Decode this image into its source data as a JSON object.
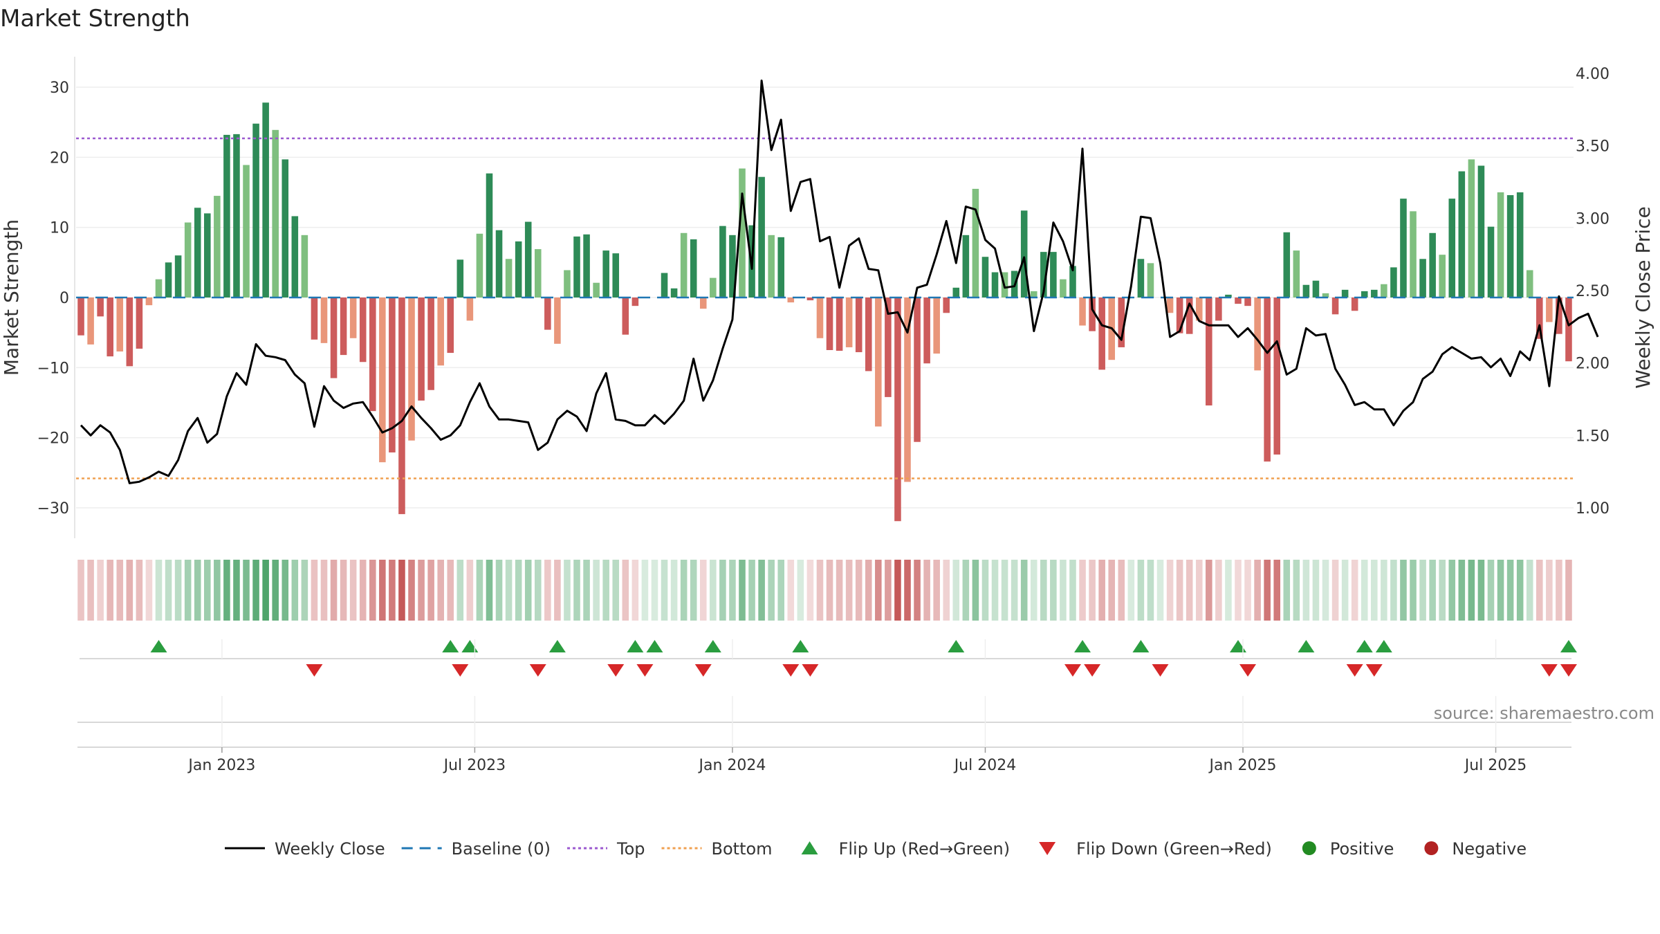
{
  "chart_data": {
    "type": "bar",
    "title": "Market Strength",
    "ylabel": "Market Strength",
    "y2label": "Weekly Close Price",
    "ylim": [
      -34,
      35
    ],
    "y2lim": [
      0.8,
      4.1
    ],
    "yticks": [
      30,
      20,
      10,
      0,
      -10,
      -20,
      -30
    ],
    "y2ticks": [
      "4.00",
      "3.50",
      "3.00",
      "2.50",
      "2.00",
      "1.50",
      "1.00"
    ],
    "xticks": [
      {
        "label": "Jan 2023",
        "week": 15
      },
      {
        "label": "Jul 2023",
        "week": 41
      },
      {
        "label": "Jan 2024",
        "week": 67.5
      },
      {
        "label": "Jul 2024",
        "week": 93.5
      },
      {
        "label": "Jan 2025",
        "week": 120
      },
      {
        "label": "Jul 2025",
        "week": 146
      }
    ],
    "top_line": 22.7,
    "bottom_line": -25.8,
    "strength": [
      -5.4,
      -6.7,
      -2.7,
      -8.4,
      -7.7,
      -9.8,
      -7.3,
      -1.1,
      2.6,
      5.0,
      6.0,
      10.7,
      12.8,
      12.0,
      14.5,
      23.2,
      23.3,
      18.9,
      24.8,
      27.8,
      23.9,
      19.7,
      11.6,
      8.9,
      -6.0,
      -6.5,
      -11.5,
      -8.2,
      -5.8,
      -9.2,
      -16.2,
      -23.5,
      -22.1,
      -30.9,
      -20.4,
      -14.7,
      -13.2,
      -9.7,
      -7.9,
      5.4,
      -3.3,
      9.1,
      17.7,
      9.6,
      5.5,
      8.0,
      10.8,
      6.9,
      -4.6,
      -6.6,
      3.9,
      8.7,
      9.0,
      2.1,
      6.7,
      6.3,
      -5.3,
      -1.2,
      0.0,
      0.0,
      3.5,
      1.3,
      9.2,
      8.3,
      -1.6,
      2.8,
      10.2,
      8.9,
      18.4,
      10.3,
      17.2,
      8.9,
      8.6,
      -0.7,
      0.0,
      -0.4,
      -5.8,
      -7.5,
      -7.6,
      -7.1,
      -7.8,
      -10.5,
      -18.4,
      -14.2,
      -31.9,
      -26.3,
      -20.6,
      -9.4,
      -8.0,
      -2.2,
      1.4,
      8.9,
      15.5,
      5.8,
      3.6,
      3.6,
      3.8,
      12.4,
      0.9,
      6.5,
      6.5,
      2.6,
      4.5,
      -4.0,
      -4.8,
      -10.3,
      -8.9,
      -7.1,
      0.0,
      5.5,
      4.9,
      0.0,
      -2.2,
      -5.1,
      -5.2,
      -3.3,
      -15.4,
      -3.3,
      0.4,
      -0.9,
      -1.2,
      -10.4,
      -23.4,
      -22.4,
      9.3,
      6.7,
      1.8,
      2.4,
      0.6,
      -2.4,
      1.1,
      -1.9,
      0.9,
      1.1,
      1.9,
      4.3,
      14.1,
      12.3,
      5.5,
      9.2,
      6.1,
      14.1,
      18.0,
      19.7,
      18.8,
      10.1,
      15.0,
      14.6,
      15.0,
      3.9,
      -5.9,
      -3.5,
      -5.2,
      -9.1
    ],
    "close": [
      1.57,
      1.5,
      1.57,
      1.52,
      1.4,
      1.17,
      1.18,
      1.21,
      1.25,
      1.22,
      1.33,
      1.53,
      1.62,
      1.45,
      1.51,
      1.77,
      1.93,
      1.85,
      2.13,
      2.05,
      2.04,
      2.02,
      1.92,
      1.86,
      1.56,
      1.84,
      1.74,
      1.69,
      1.72,
      1.73,
      1.63,
      1.52,
      1.55,
      1.6,
      1.7,
      1.62,
      1.55,
      1.47,
      1.5,
      1.57,
      1.73,
      1.86,
      1.7,
      1.61,
      1.61,
      1.6,
      1.59,
      1.4,
      1.45,
      1.61,
      1.67,
      1.63,
      1.53,
      1.79,
      1.93,
      1.61,
      1.6,
      1.57,
      1.57,
      1.64,
      1.58,
      1.65,
      1.74,
      2.03,
      1.74,
      1.88,
      2.1,
      2.3,
      3.17,
      2.65,
      3.95,
      3.47,
      3.68,
      3.05,
      3.25,
      3.27,
      2.84,
      2.87,
      2.52,
      2.81,
      2.86,
      2.65,
      2.64,
      2.34,
      2.35,
      2.21,
      2.52,
      2.54,
      2.75,
      2.98,
      2.69,
      3.08,
      3.06,
      2.85,
      2.79,
      2.52,
      2.53,
      2.73,
      2.22,
      2.49,
      2.97,
      2.84,
      2.64,
      3.48,
      2.37,
      2.26,
      2.24,
      2.16,
      2.53,
      3.01,
      3.0,
      2.69,
      2.18,
      2.22,
      2.41,
      2.29,
      2.26,
      2.26,
      2.26,
      2.18,
      2.24,
      2.16,
      2.07,
      2.15,
      1.92,
      1.96,
      2.24,
      2.19,
      2.2,
      1.96,
      1.85,
      1.71,
      1.73,
      1.68,
      1.68,
      1.57,
      1.67,
      1.73,
      1.89,
      1.94,
      2.06,
      2.11,
      2.07,
      2.03,
      2.04,
      1.97,
      2.03,
      1.91,
      2.08,
      2.02,
      2.26,
      1.84,
      2.46,
      2.26,
      2.31,
      2.34,
      2.18
    ],
    "flip_up_weeks": [
      8,
      38,
      40,
      49,
      57,
      59,
      65,
      74,
      90,
      103,
      109,
      119,
      126,
      132,
      134,
      153
    ],
    "flip_down_weeks": [
      24,
      39,
      47,
      55,
      58,
      64,
      73,
      75,
      102,
      104,
      111,
      120,
      131,
      133,
      151,
      153
    ],
    "colors": {
      "pos_strong": "#2e8b57",
      "pos_light": "#7fbf7f",
      "neg_strong": "#cd5c5c",
      "neg_light": "#e9967a",
      "price_line": "#000000",
      "baseline": "#1f77b4",
      "top": "#9b59d0",
      "bottom": "#f0a050",
      "flip_up": "#2a9d3f",
      "flip_down": "#d62728",
      "positive_dot": "#228b22",
      "negative_dot": "#b22222"
    },
    "legend": [
      {
        "label": "Weekly Close",
        "kind": "line-solid",
        "color": "#000000"
      },
      {
        "label": "Baseline (0)",
        "kind": "line-dash",
        "color": "#1f77b4"
      },
      {
        "label": "Top",
        "kind": "line-dot",
        "color": "#9b59d0"
      },
      {
        "label": "Bottom",
        "kind": "line-dot",
        "color": "#f0a050"
      },
      {
        "label": "Flip Up (Red→Green)",
        "kind": "tri-up",
        "color": "#2a9d3f"
      },
      {
        "label": "Flip Down (Green→Red)",
        "kind": "tri-down",
        "color": "#d62728"
      },
      {
        "label": "Positive",
        "kind": "dot",
        "color": "#228b22"
      },
      {
        "label": "Negative",
        "kind": "dot",
        "color": "#b22222"
      }
    ],
    "legend_position": "bottom",
    "grid": true
  },
  "source": "source: sharemaestro.com"
}
